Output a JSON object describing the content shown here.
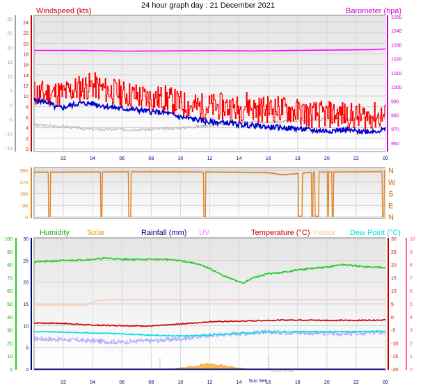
{
  "title": "24 hour graph day : 21 December 2021",
  "colors": {
    "windspeed": "#ff0000",
    "wind_avg": "#0000cc",
    "wind_grey": "#b8b8b8",
    "barometer": "#ff00ff",
    "direction": "#e08020",
    "humidity": "#22cc22",
    "solar": "#ccaa00",
    "solar_fill": "#ffb040",
    "rainfall": "#000080",
    "uv": "#ff80ff",
    "temperature": "#cc0000",
    "indoor": "#ffbfa0",
    "dewpoint": "#00e0e0",
    "feels": "#b0b0ff",
    "left_axis_grey": "#a0a0a0",
    "hum_axis": "#00aa00",
    "uv_axis": "#ff3399",
    "temp_axis": "#cc0000"
  },
  "chart_data": [
    {
      "type": "line",
      "name": "wind-barometer",
      "title": "",
      "labels": {
        "left": "Windspeed (kts)",
        "right": "Barometer (hpa)"
      },
      "x_ticks": [
        "02",
        "04",
        "06",
        "08",
        "10",
        "12",
        "14",
        "16",
        "18",
        "20",
        "22",
        "00"
      ],
      "x_range_hours": [
        0,
        24
      ],
      "outer_left_ticks": [
        "30",
        "25",
        "20",
        "15",
        "10",
        "5",
        "0",
        "-5",
        "-10",
        "-15"
      ],
      "outer_left_range": [
        -15,
        30
      ],
      "y_ticks": [
        "24",
        "22",
        "20",
        "18",
        "16",
        "14",
        "12",
        "10",
        "8",
        "6",
        "4",
        "2",
        "0"
      ],
      "ylim": [
        0,
        24
      ],
      "right_ticks": [
        "1050",
        "1040",
        "1030",
        "1020",
        "1010",
        "1000",
        "990",
        "980",
        "970",
        "960"
      ],
      "right_range": [
        955,
        1050
      ],
      "series": [
        {
          "key": "gust",
          "color_key": "windspeed",
          "scale": "left",
          "anchors": [
            [
              0,
              10.5
            ],
            [
              1,
              10.5
            ],
            [
              2,
              10.5
            ],
            [
              3,
              11.5
            ],
            [
              4,
              12
            ],
            [
              5,
              11
            ],
            [
              6,
              10.5
            ],
            [
              7,
              10
            ],
            [
              8,
              9.5
            ],
            [
              9,
              9.5
            ],
            [
              10,
              8.5
            ],
            [
              11,
              8
            ],
            [
              12,
              8
            ],
            [
              13,
              8
            ],
            [
              14,
              7.5
            ],
            [
              14.5,
              8.5
            ],
            [
              15,
              7.5
            ],
            [
              16,
              7.5
            ],
            [
              17,
              7.5
            ],
            [
              18,
              7
            ],
            [
              19,
              6.5
            ],
            [
              20,
              6.5
            ],
            [
              21,
              6.5
            ],
            [
              22,
              6
            ],
            [
              23,
              6.2
            ],
            [
              24,
              6.2
            ]
          ],
          "amp": 2.6,
          "seed": 11,
          "jagged": true
        },
        {
          "key": "average",
          "color_key": "wind_avg",
          "scale": "left",
          "anchors": [
            [
              0,
              9.2
            ],
            [
              1,
              8.8
            ],
            [
              1.5,
              7.8
            ],
            [
              2,
              7.8
            ],
            [
              3,
              8.6
            ],
            [
              4,
              8.6
            ],
            [
              5,
              8
            ],
            [
              6,
              7.6
            ],
            [
              7,
              7.4
            ],
            [
              8,
              7
            ],
            [
              9,
              6.8
            ],
            [
              10,
              6
            ],
            [
              11,
              5.6
            ],
            [
              12,
              5
            ],
            [
              13,
              5
            ],
            [
              14,
              4.6
            ],
            [
              15,
              4.4
            ],
            [
              16,
              4.1
            ],
            [
              17,
              4
            ],
            [
              18,
              3.8
            ],
            [
              19,
              3.5
            ],
            [
              20,
              3.4
            ],
            [
              21,
              3.6
            ],
            [
              22,
              3.3
            ],
            [
              23,
              3.3
            ],
            [
              24,
              3.6
            ]
          ],
          "amp": 0.5,
          "seed": 5,
          "jagged": false
        },
        {
          "key": "grey",
          "color_key": "wind_grey",
          "scale": "outer_left",
          "anchors": [
            [
              0,
              -7
            ],
            [
              2,
              -7.5
            ],
            [
              4,
              -8.5
            ],
            [
              6,
              -8.5
            ],
            [
              8,
              -8.5
            ],
            [
              10,
              -8
            ],
            [
              12,
              -7
            ],
            [
              14,
              -6
            ],
            [
              16,
              -6
            ],
            [
              18,
              -5.5
            ],
            [
              20,
              -5
            ],
            [
              22,
              -5
            ],
            [
              24,
              -4.5
            ]
          ],
          "amp": 0.5,
          "seed": 3,
          "jagged": false
        },
        {
          "key": "barometer",
          "color_key": "barometer",
          "scale": "right",
          "anchors": [
            [
              0,
              1026
            ],
            [
              3,
              1026
            ],
            [
              6,
              1025.5
            ],
            [
              9,
              1025.6
            ],
            [
              12,
              1025.8
            ],
            [
              15,
              1025.6
            ],
            [
              18,
              1026
            ],
            [
              21,
              1026.3
            ],
            [
              23,
              1026.5
            ],
            [
              24,
              1027
            ]
          ],
          "amp": 0,
          "seed": 0,
          "jagged": false
        }
      ]
    },
    {
      "type": "line",
      "name": "wind-direction",
      "title": "",
      "y_ticks": [
        "360",
        "270",
        "180",
        "90",
        "0"
      ],
      "ylim": [
        0,
        360
      ],
      "compass_labels": [
        "N",
        "W",
        "S",
        "E",
        "N"
      ],
      "x_range_hours": [
        0,
        24
      ],
      "series": [
        {
          "key": "direction",
          "color_key": "direction",
          "base": [
            [
              0,
              345
            ],
            [
              6,
              348
            ],
            [
              10,
              348
            ],
            [
              14,
              345
            ],
            [
              16,
              342
            ],
            [
              17,
              325
            ],
            [
              18,
              335
            ],
            [
              19,
              346
            ],
            [
              22,
              348
            ],
            [
              24,
              350
            ]
          ],
          "drops": [
            [
              1.0,
              1.1
            ],
            [
              4.55,
              4.65
            ],
            [
              6.45,
              6.6
            ],
            [
              11.6,
              11.7
            ],
            [
              18.05,
              18.3
            ],
            [
              18.95,
              19.05
            ],
            [
              19.2,
              19.45
            ],
            [
              20.05,
              20.12
            ],
            [
              20.35,
              20.45
            ],
            [
              23.8,
              23.9
            ]
          ],
          "drop_value": 5
        }
      ]
    },
    {
      "type": "line",
      "name": "temperature-humidity",
      "title": "",
      "legend": [
        "Humidity",
        "Solar",
        "Rainfall (mm)",
        "UV",
        "Temperature (°C)",
        "Indoor",
        "Dew Point (°C)"
      ],
      "x_ticks": [
        "02",
        "04",
        "06",
        "08",
        "10",
        "12",
        "14",
        "16",
        "18",
        "20",
        "22",
        "00"
      ],
      "x_range_hours": [
        0,
        24
      ],
      "hum_ticks": [
        "100",
        "90",
        "80",
        "70",
        "60",
        "50",
        "40",
        "30",
        "20",
        "10",
        "0"
      ],
      "hum_range": [
        0,
        100
      ],
      "y_ticks": [
        "30",
        "25",
        "20",
        "15",
        "10",
        "5",
        "0"
      ],
      "ylim": [
        0,
        30
      ],
      "right_temp_ticks": [
        "30",
        "25",
        "20",
        "15",
        "10",
        "5",
        "0",
        "-5",
        "-10",
        "-15",
        "-20"
      ],
      "right_temp_range": [
        -20,
        30
      ],
      "uv_ticks": [
        "10",
        "9",
        "8",
        "7",
        "6",
        "5",
        "4",
        "3",
        "2",
        "1",
        "0"
      ],
      "uv_range": [
        0,
        10
      ],
      "annotations": [
        "Sun Set",
        "Moon Rise"
      ],
      "series": [
        {
          "key": "humidity",
          "color_key": "humidity",
          "scale": "hum",
          "anchors": [
            [
              0,
              82
            ],
            [
              2,
              83
            ],
            [
              4,
              84
            ],
            [
              5,
              85
            ],
            [
              6,
              84
            ],
            [
              7,
              84
            ],
            [
              9,
              84
            ],
            [
              10,
              83
            ],
            [
              11,
              81
            ],
            [
              12,
              77
            ],
            [
              13,
              71
            ],
            [
              14,
              67
            ],
            [
              14.3,
              66
            ],
            [
              15,
              70
            ],
            [
              16,
              73
            ],
            [
              17,
              74
            ],
            [
              18,
              76
            ],
            [
              19,
              77
            ],
            [
              20,
              78
            ],
            [
              21,
              80
            ],
            [
              22,
              79
            ],
            [
              23,
              78
            ],
            [
              24,
              78
            ]
          ],
          "amp": 0.6,
          "seed": 21,
          "jagged": false
        },
        {
          "key": "indoor",
          "color_key": "indoor",
          "scale": "hum",
          "anchors": [
            [
              0,
              49
            ],
            [
              1,
              49
            ],
            [
              2,
              49
            ],
            [
              3,
              49
            ],
            [
              3.6,
              49
            ],
            [
              4.2,
              52
            ],
            [
              5,
              53
            ],
            [
              8,
              53
            ],
            [
              12,
              53
            ],
            [
              16,
              53
            ],
            [
              20,
              53
            ],
            [
              24,
              53
            ]
          ],
          "amp": 0,
          "seed": 0,
          "jagged": false
        },
        {
          "key": "temperature",
          "color_key": "temperature",
          "scale": "left",
          "anchors": [
            [
              0,
              10.6
            ],
            [
              2,
              10.5
            ],
            [
              4,
              10.1
            ],
            [
              6,
              10.0
            ],
            [
              8,
              9.9
            ],
            [
              9,
              10.1
            ],
            [
              10,
              10.4
            ],
            [
              11,
              10.6
            ],
            [
              12,
              10.9
            ],
            [
              14,
              11.0
            ],
            [
              16,
              11.2
            ],
            [
              18,
              11.3
            ],
            [
              20,
              11.2
            ],
            [
              22,
              11.2
            ],
            [
              24,
              11.3
            ]
          ],
          "amp": 0.12,
          "seed": 7,
          "jagged": false
        },
        {
          "key": "dewpoint",
          "color_key": "dewpoint",
          "scale": "left",
          "anchors": [
            [
              0,
              8.6
            ],
            [
              2,
              8.5
            ],
            [
              4,
              8.3
            ],
            [
              6,
              8.1
            ],
            [
              8,
              7.8
            ],
            [
              10,
              7.6
            ],
            [
              12,
              7.8
            ],
            [
              14,
              8.2
            ],
            [
              16,
              8.5
            ],
            [
              18,
              8.6
            ],
            [
              20,
              8.6
            ],
            [
              22,
              8.6
            ],
            [
              24,
              8.7
            ]
          ],
          "amp": 0.12,
          "seed": 9,
          "jagged": false
        },
        {
          "key": "feels",
          "color_key": "feels",
          "scale": "left",
          "anchors": [
            [
              0,
              7
            ],
            [
              2,
              6.8
            ],
            [
              4,
              6.5
            ],
            [
              5,
              6.3
            ],
            [
              6,
              6.2
            ],
            [
              7,
              6.4
            ],
            [
              8,
              6.5
            ],
            [
              10,
              7
            ],
            [
              12,
              7.8
            ],
            [
              14,
              8.2
            ],
            [
              16,
              8.5
            ],
            [
              18,
              8.4
            ],
            [
              20,
              8.2
            ],
            [
              22,
              8.2
            ],
            [
              24,
              8.5
            ]
          ],
          "amp": 0.5,
          "seed": 17,
          "jagged": true
        },
        {
          "key": "solar",
          "color_key": "solar_fill",
          "scale": "left",
          "anchors": [
            [
              8.8,
              0
            ],
            [
              9.5,
              0.1
            ],
            [
              10,
              0.3
            ],
            [
              10.5,
              0.5
            ],
            [
              11,
              0.8
            ],
            [
              11.5,
              1.0
            ],
            [
              12,
              1.2
            ],
            [
              12.5,
              1.0
            ],
            [
              13,
              0.8
            ],
            [
              13.5,
              0.5
            ],
            [
              14,
              0.3
            ],
            [
              14.5,
              0.1
            ],
            [
              15,
              0
            ]
          ],
          "amp": 0,
          "seed": 0,
          "jagged": false
        },
        {
          "key": "rainfall",
          "color_key": "rainfall",
          "scale": "left",
          "anchors": [
            [
              0,
              0
            ],
            [
              24,
              0
            ]
          ],
          "amp": 0,
          "seed": 0,
          "jagged": false
        }
      ]
    }
  ]
}
